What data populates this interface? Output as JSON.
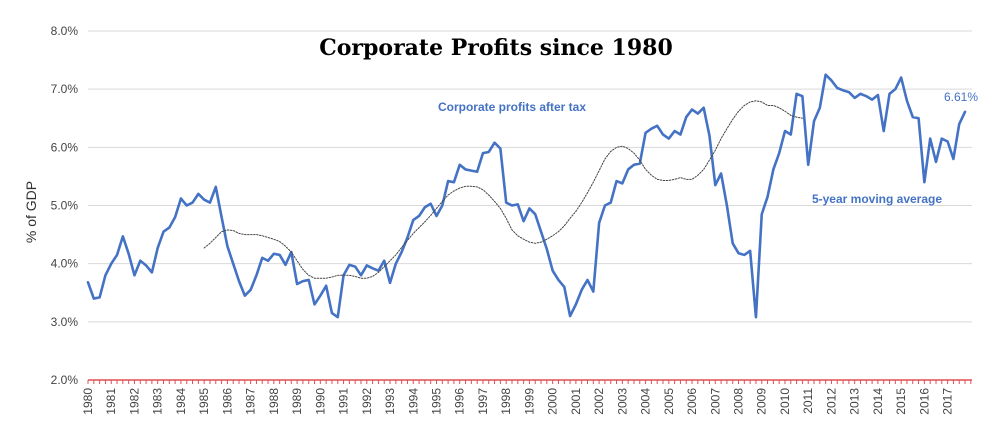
{
  "chart_data": {
    "type": "line",
    "title": "Corporate Profits since 1980",
    "ylabel": "% of GDP",
    "xlabel": "",
    "ylim": [
      2.0,
      8.0
    ],
    "yticks": [
      "2.0%",
      "3.0%",
      "4.0%",
      "5.0%",
      "6.0%",
      "7.0%",
      "8.0%"
    ],
    "grid": true,
    "xtick_labels": [
      "1980",
      "1981",
      "1982",
      "1983",
      "1984",
      "1985",
      "1986",
      "1987",
      "1988",
      "1989",
      "1990",
      "1991",
      "1992",
      "1993",
      "1994",
      "1995",
      "1996",
      "1997",
      "1998",
      "1999",
      "2000",
      "2001",
      "2002",
      "2003",
      "2004",
      "2005",
      "2006",
      "2007",
      "2008",
      "2009",
      "2010",
      "2011",
      "2012",
      "2013",
      "2014",
      "2015",
      "2016",
      "2017"
    ],
    "x_start": 1980,
    "x_step": 0.25,
    "series": [
      {
        "name": "Corporate profits after tax",
        "color": "#4472C4",
        "values": [
          3.68,
          3.4,
          3.42,
          3.8,
          4.0,
          4.15,
          4.47,
          4.17,
          3.8,
          4.05,
          3.97,
          3.85,
          4.27,
          4.55,
          4.62,
          4.8,
          5.12,
          5.0,
          5.05,
          5.2,
          5.1,
          5.05,
          5.32,
          4.8,
          4.3,
          4.0,
          3.7,
          3.45,
          3.55,
          3.8,
          4.1,
          4.05,
          4.17,
          4.15,
          3.98,
          4.2,
          3.65,
          3.7,
          3.72,
          3.3,
          3.45,
          3.62,
          3.15,
          3.08,
          3.8,
          3.98,
          3.95,
          3.8,
          3.97,
          3.92,
          3.88,
          4.05,
          3.67,
          4.0,
          4.2,
          4.45,
          4.75,
          4.82,
          4.97,
          5.03,
          4.82,
          5.0,
          5.42,
          5.4,
          5.7,
          5.62,
          5.6,
          5.58,
          5.9,
          5.92,
          6.08,
          5.98,
          5.05,
          5.0,
          5.02,
          4.73,
          4.95,
          4.85,
          4.55,
          4.25,
          3.88,
          3.72,
          3.6,
          3.1,
          3.3,
          3.55,
          3.72,
          3.52,
          4.7,
          5.0,
          5.05,
          5.42,
          5.38,
          5.62,
          5.7,
          5.72,
          6.25,
          6.32,
          6.37,
          6.22,
          6.15,
          6.28,
          6.22,
          6.52,
          6.65,
          6.58,
          6.68,
          6.2,
          5.35,
          5.55,
          5.0,
          4.35,
          4.18,
          4.15,
          4.22,
          3.08,
          4.85,
          5.15,
          5.62,
          5.9,
          6.28,
          6.22,
          6.92,
          6.88,
          5.7,
          6.45,
          6.68,
          7.25,
          7.15,
          7.02,
          6.98,
          6.95,
          6.85,
          6.92,
          6.88,
          6.82,
          6.9,
          6.28,
          6.92,
          7.0,
          7.2,
          6.8,
          6.52,
          6.5,
          5.4,
          6.15,
          5.75,
          6.15,
          6.1,
          5.8,
          6.4,
          6.61
        ]
      },
      {
        "name": "5-year moving average",
        "color": "#444444",
        "x_start": 1985,
        "values": [
          4.27,
          4.35,
          4.45,
          4.55,
          4.58,
          4.57,
          4.52,
          4.5,
          4.5,
          4.5,
          4.48,
          4.45,
          4.42,
          4.38,
          4.3,
          4.2,
          4.05,
          3.9,
          3.8,
          3.75,
          3.75,
          3.75,
          3.77,
          3.8,
          3.8,
          3.8,
          3.78,
          3.75,
          3.75,
          3.78,
          3.85,
          3.95,
          4.05,
          4.15,
          4.28,
          4.4,
          4.52,
          4.62,
          4.72,
          4.83,
          4.95,
          5.07,
          5.18,
          5.25,
          5.3,
          5.33,
          5.33,
          5.32,
          5.27,
          5.18,
          5.07,
          4.95,
          4.78,
          4.58,
          4.48,
          4.42,
          4.37,
          4.35,
          4.37,
          4.42,
          4.48,
          4.55,
          4.65,
          4.78,
          4.9,
          5.05,
          5.22,
          5.4,
          5.6,
          5.8,
          5.93,
          6.0,
          6.02,
          5.98,
          5.9,
          5.78,
          5.62,
          5.52,
          5.45,
          5.43,
          5.43,
          5.45,
          5.48,
          5.45,
          5.45,
          5.52,
          5.62,
          5.78,
          5.95,
          6.15,
          6.32,
          6.48,
          6.62,
          6.72,
          6.78,
          6.8,
          6.78,
          6.72,
          6.72,
          6.68,
          6.62,
          6.55,
          6.52,
          6.5
        ]
      }
    ],
    "annotations": {
      "series1_label": "Corporate profits after tax",
      "series2_label": "5-year moving average",
      "last_value": "6.61%"
    }
  }
}
